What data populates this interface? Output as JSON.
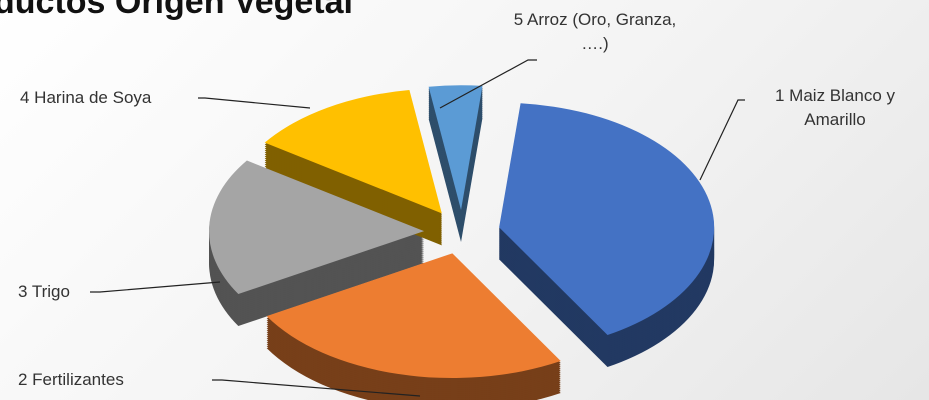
{
  "chart_data": {
    "type": "pie",
    "title": "ductos Origen Vegetal",
    "categories": [
      "1 Maiz Blanco y Amarillo",
      "2 Fertilizantes",
      "3 Trigo",
      "4 Harina de Soya",
      "5 Arroz (Oro, Granza, ….)"
    ],
    "values": [
      40,
      25,
      18,
      13,
      4
    ],
    "colors": [
      "#4472c4",
      "#ed7d31",
      "#a5a5a5",
      "#ffc000",
      "#5b9bd5"
    ]
  }
}
